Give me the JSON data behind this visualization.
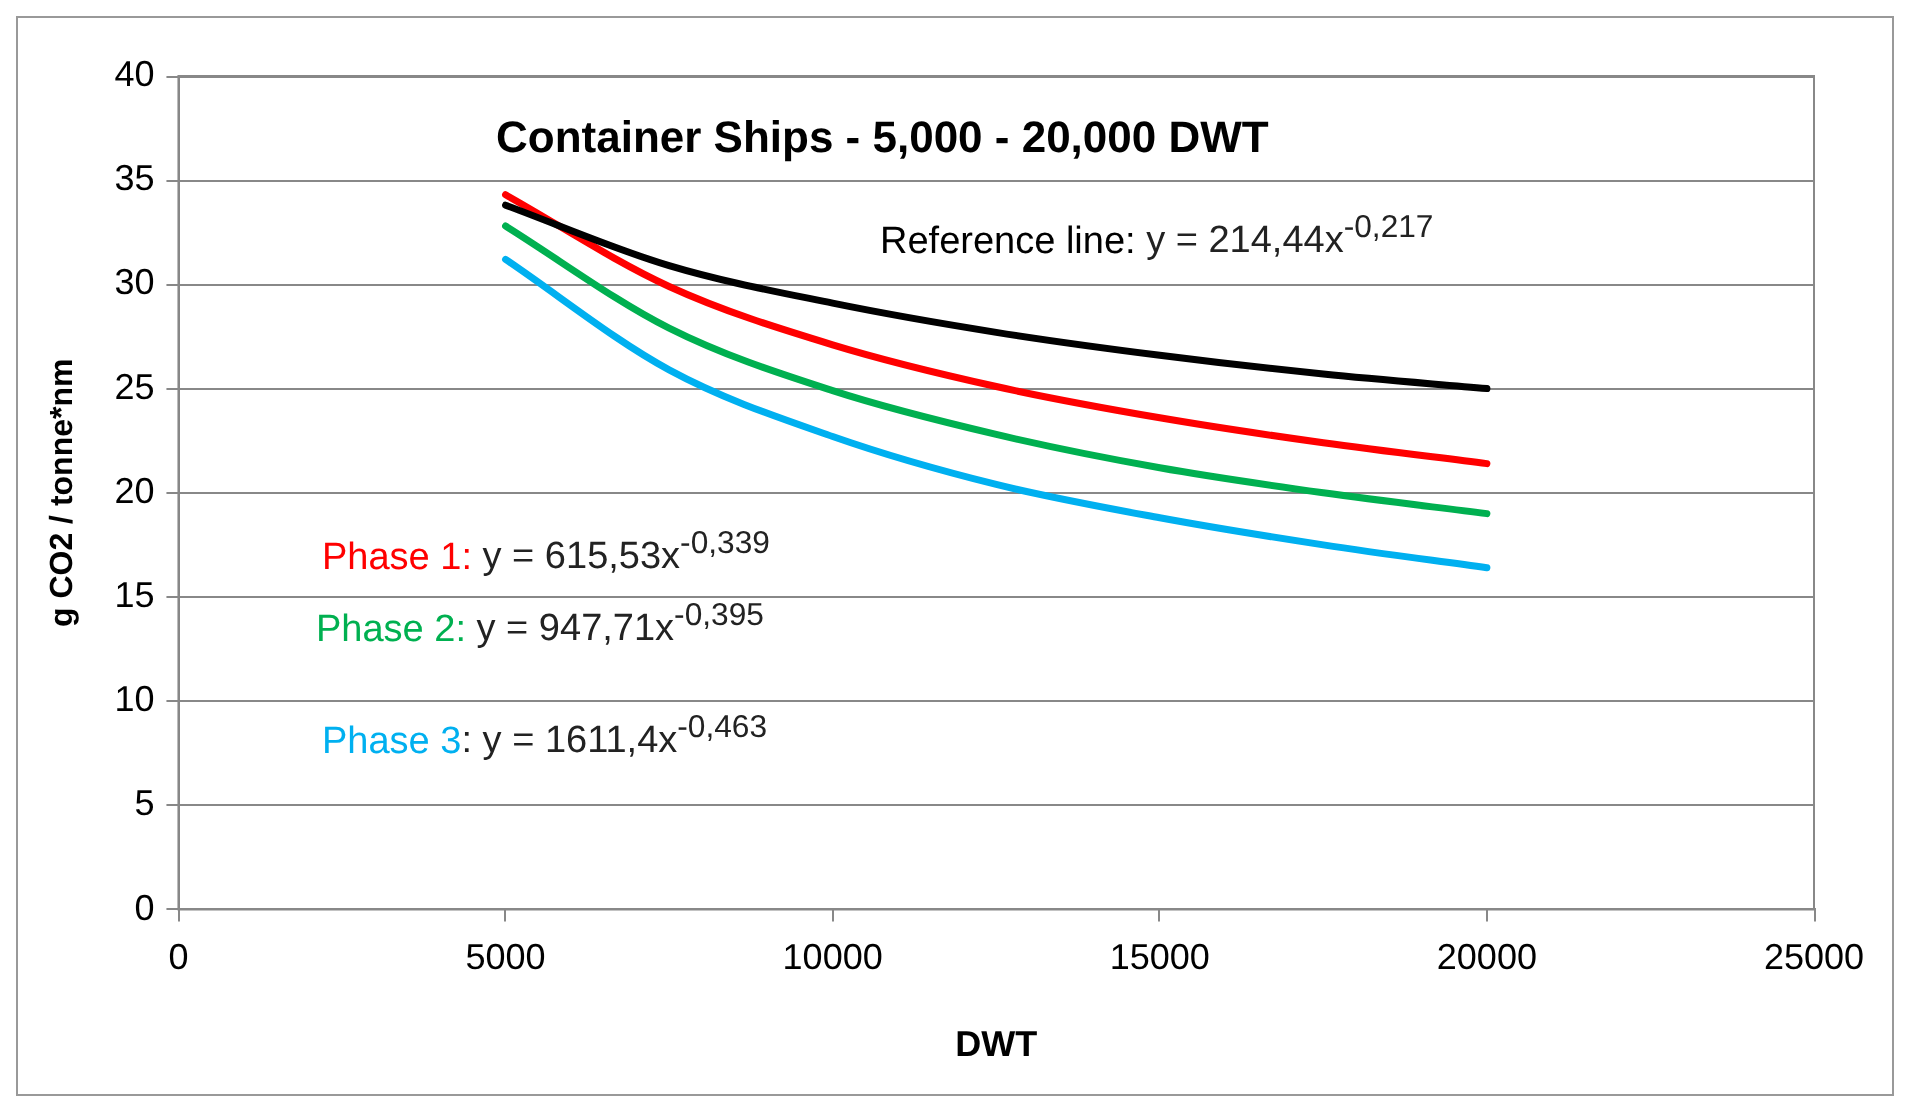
{
  "chart_data": {
    "type": "line",
    "title": "Container Ships - 5,000 - 20,000 DWT",
    "xlabel": "DWT",
    "ylabel": "g CO2 / tonne*nm",
    "x": [
      5000,
      7500,
      10000,
      12500,
      15000,
      17500,
      20000
    ],
    "series": [
      {
        "name": "Reference line:",
        "color": "#000000",
        "values": [
          33.8,
          30.9,
          29.1,
          27.7,
          26.6,
          25.7,
          25.0
        ]
      },
      {
        "name": "Phase 1:",
        "color": "#ff0000",
        "values": [
          34.3,
          29.9,
          27.1,
          25.1,
          23.6,
          22.4,
          21.4
        ]
      },
      {
        "name": "Phase 2:",
        "color": "#00b050",
        "values": [
          32.8,
          27.9,
          24.9,
          22.8,
          21.2,
          20.0,
          19.0
        ]
      },
      {
        "name": "Phase 3",
        "color": "#00b0f0",
        "values": [
          31.2,
          25.9,
          22.7,
          20.4,
          18.8,
          17.5,
          16.4
        ]
      }
    ],
    "annotations": [
      " y = 214,44x$^{-0,217}$",
      " y = 615,53x$^{-0,339}$",
      " y = 947,71x$^{-0,395}$",
      ": y = 1611,4x$^{-0,463}$"
    ],
    "xlim": [
      0,
      25000
    ],
    "xticks": [
      0,
      5000,
      10000,
      15000,
      20000,
      25000
    ],
    "ylim": [
      0,
      40
    ],
    "yticks": [
      0,
      5,
      10,
      15,
      20,
      25,
      30,
      35,
      40
    ],
    "grid": "y",
    "legend": false,
    "marker": "none",
    "line_style": "solid"
  }
}
